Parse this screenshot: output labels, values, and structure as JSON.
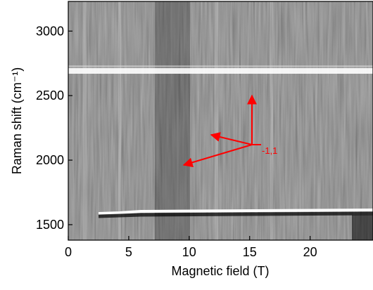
{
  "chart_data": {
    "type": "heatmap",
    "xlabel": "Magnetic field (T)",
    "ylabel": "Raman shift (cm⁻¹)",
    "xlim": [
      0,
      25.2
    ],
    "ylim": [
      1380,
      3230
    ],
    "xticks": [
      0,
      5,
      10,
      15,
      20
    ],
    "yticks": [
      1500,
      2000,
      2500,
      3000
    ],
    "annotations": [
      {
        "text": "-1,1",
        "color": "#ff0000"
      }
    ]
  }
}
